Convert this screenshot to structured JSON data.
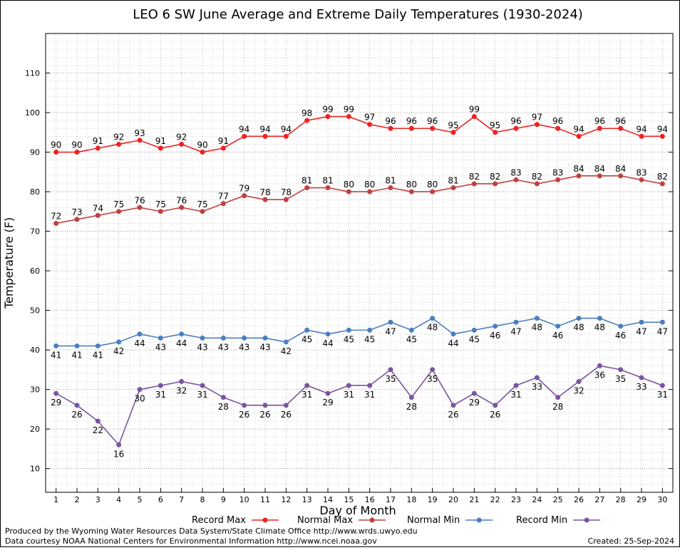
{
  "chart_data": {
    "type": "line",
    "title": "LEO 6 SW June Average and Extreme Daily Temperatures (1930-2024)",
    "xlabel": "Day of Month",
    "ylabel": "Temperature (F)",
    "x": [
      1,
      2,
      3,
      4,
      5,
      6,
      7,
      8,
      9,
      10,
      11,
      12,
      13,
      14,
      15,
      16,
      17,
      18,
      19,
      20,
      21,
      22,
      23,
      24,
      25,
      26,
      27,
      28,
      29,
      30
    ],
    "xlim": [
      0.5,
      30.5
    ],
    "ylim": [
      4,
      120
    ],
    "yticks": [
      10,
      20,
      30,
      40,
      50,
      60,
      70,
      80,
      90,
      100,
      110
    ],
    "grid": true,
    "legend_position": "bottom",
    "series": [
      {
        "name": "Record Max",
        "color": "#ee2222",
        "label_position": "above",
        "values": [
          90,
          90,
          91,
          92,
          93,
          91,
          92,
          90,
          91,
          94,
          94,
          94,
          98,
          99,
          99,
          97,
          96,
          96,
          96,
          95,
          99,
          95,
          96,
          97,
          96,
          94,
          96,
          96,
          94,
          94
        ]
      },
      {
        "name": "Normal Max",
        "color": "#c04040",
        "label_position": "above",
        "values": [
          72,
          73,
          74,
          75,
          76,
          75,
          76,
          75,
          77,
          79,
          78,
          78,
          81,
          81,
          80,
          80,
          81,
          80,
          80,
          81,
          82,
          82,
          83,
          82,
          83,
          84,
          84,
          84,
          83,
          82
        ]
      },
      {
        "name": "Normal Min",
        "color": "#4b7fbf",
        "label_position": "below",
        "values": [
          41,
          41,
          41,
          42,
          44,
          43,
          44,
          43,
          43,
          43,
          43,
          42,
          45,
          44,
          45,
          45,
          47,
          45,
          48,
          44,
          45,
          46,
          47,
          48,
          46,
          48,
          48,
          46,
          47,
          47
        ]
      },
      {
        "name": "Record Min",
        "color": "#7a55a0",
        "label_position": "below",
        "values": [
          29,
          26,
          22,
          16,
          30,
          31,
          32,
          31,
          28,
          26,
          26,
          26,
          31,
          29,
          31,
          31,
          35,
          28,
          35,
          26,
          29,
          26,
          31,
          33,
          28,
          32,
          36,
          35,
          33,
          31
        ]
      }
    ]
  },
  "footer": {
    "line1": "Produced by the Wyoming Water Resources Data System/State Climate Office http://www.wrds.uwyo.edu",
    "line2": "Data courtesy NOAA National Centers for Environmental Information http://www.ncei.noaa.gov",
    "created": "Created: 25-Sep-2024"
  }
}
